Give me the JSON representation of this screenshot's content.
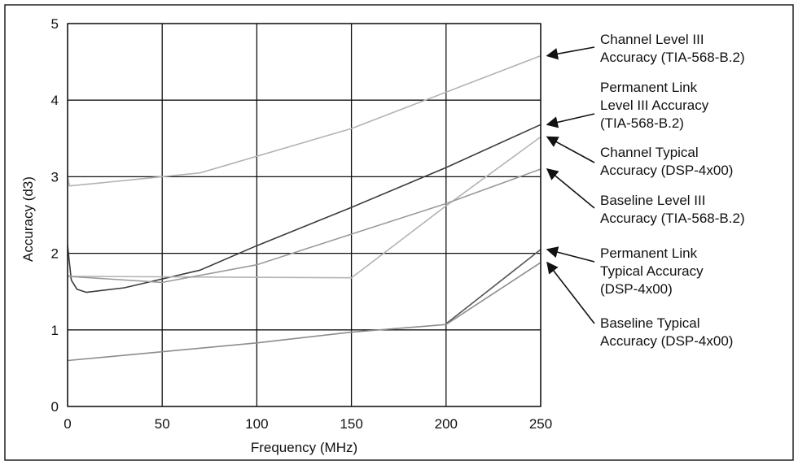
{
  "chart_data": {
    "type": "line",
    "title": "",
    "xlabel": "Frequency (MHz)",
    "ylabel": "Accuracy (d3)",
    "xlim": [
      0,
      250
    ],
    "ylim": [
      0,
      5
    ],
    "xticks": [
      "0",
      "50",
      "100",
      "150",
      "200",
      "250"
    ],
    "yticks": [
      "0",
      "1",
      "2",
      "3",
      "4",
      "5"
    ],
    "grid": true,
    "series": [
      {
        "name": "Channel Level III Accuracy (TIA-568-B.2)",
        "label_lines": [
          "Channel Level III",
          "Accuracy (TIA-568-B.2)"
        ],
        "color": "#b3b3b3",
        "points": [
          [
            0,
            3.0
          ],
          [
            1,
            2.88
          ],
          [
            30,
            2.95
          ],
          [
            70,
            3.05
          ],
          [
            150,
            3.63
          ],
          [
            250,
            4.58
          ]
        ]
      },
      {
        "name": "Permanent Link Level III Accuracy (TIA-568-B.2)",
        "label_lines": [
          "Permanent Link",
          "Level III Accuracy",
          "(TIA-568-B.2)"
        ],
        "color": "#3c3c3c",
        "points": [
          [
            0,
            2.1
          ],
          [
            2,
            1.65
          ],
          [
            5,
            1.53
          ],
          [
            10,
            1.49
          ],
          [
            30,
            1.55
          ],
          [
            70,
            1.78
          ],
          [
            100,
            2.1
          ],
          [
            150,
            2.6
          ],
          [
            200,
            3.12
          ],
          [
            250,
            3.68
          ]
        ]
      },
      {
        "name": "Channel Typical Accuracy (DSP-4x00)",
        "label_lines": [
          "Channel Typical",
          "Accuracy (DSP-4x00)"
        ],
        "color": "#b3b3b3",
        "points": [
          [
            0,
            1.72
          ],
          [
            1,
            1.7
          ],
          [
            150,
            1.68
          ],
          [
            200,
            2.62
          ],
          [
            250,
            3.52
          ]
        ]
      },
      {
        "name": "Baseline Level III Accuracy (TIA-568-B.2)",
        "label_lines": [
          "Baseline Level III",
          "Accuracy (TIA-568-B.2)"
        ],
        "color": "#9a9a9a",
        "points": [
          [
            0,
            1.7
          ],
          [
            50,
            1.62
          ],
          [
            100,
            1.85
          ],
          [
            150,
            2.25
          ],
          [
            200,
            2.65
          ],
          [
            250,
            3.1
          ]
        ]
      },
      {
        "name": "Permanent Link Typical Accuracy (DSP-4x00)",
        "label_lines": [
          "Permanent Link",
          "Typical Accuracy",
          "(DSP-4x00)"
        ],
        "color": "#555555",
        "points": [
          [
            200,
            1.08
          ],
          [
            250,
            2.05
          ]
        ]
      },
      {
        "name": "Baseline Typical Accuracy (DSP-4x00)",
        "label_lines": [
          "Baseline Typical",
          "Accuracy (DSP-4x00)"
        ],
        "color": "#8c8c8c",
        "points": [
          [
            0,
            0.6
          ],
          [
            100,
            0.83
          ],
          [
            150,
            0.97
          ],
          [
            200,
            1.07
          ],
          [
            250,
            1.88
          ]
        ]
      }
    ]
  }
}
